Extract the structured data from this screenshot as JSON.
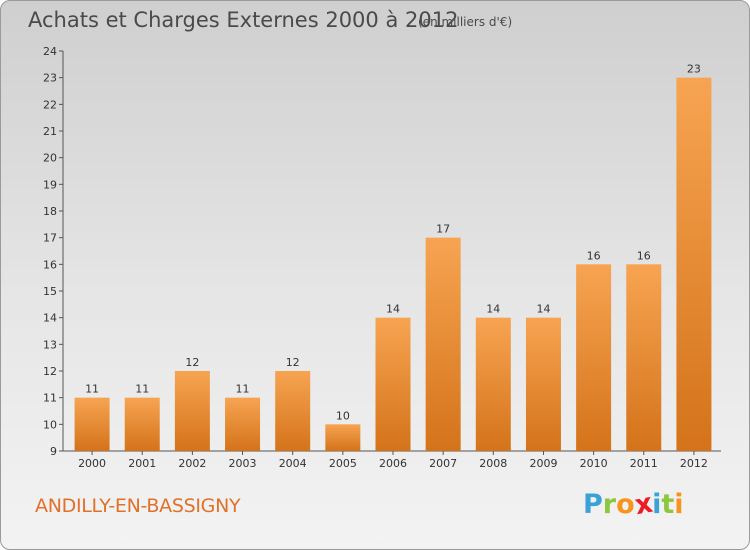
{
  "header": {
    "title": "Achats et Charges Externes 2000 à 2012",
    "subtitle": "(en milliers d'€)"
  },
  "footer": {
    "commune": "ANDILLY-EN-BASSIGNY",
    "logo_letters": [
      "P",
      "r",
      "o",
      "x",
      "i",
      "t",
      "i"
    ],
    "logo_colors": [
      "#3aa3d6",
      "#8dc63f",
      "#f7941d",
      "#ed1c24",
      "#3aa3d6",
      "#8dc63f",
      "#f7941d"
    ]
  },
  "chart_data": {
    "type": "bar",
    "title": "Achats et Charges Externes 2000 à 2012",
    "subtitle": "(en milliers d'€)",
    "categories": [
      "2000",
      "2001",
      "2002",
      "2003",
      "2004",
      "2005",
      "2006",
      "2007",
      "2008",
      "2009",
      "2010",
      "2011",
      "2012"
    ],
    "values": [
      11,
      11,
      12,
      11,
      12,
      10,
      14,
      17,
      14,
      14,
      16,
      16,
      23
    ],
    "data_labels": [
      "11",
      "11",
      "12",
      "11",
      "12",
      "10",
      "14",
      "17",
      "14",
      "14",
      "16",
      "16",
      "23"
    ],
    "xlabel": "",
    "ylabel": "",
    "ylim": [
      9,
      24
    ],
    "yticks": [
      9,
      10,
      11,
      12,
      13,
      14,
      15,
      16,
      17,
      18,
      19,
      20,
      21,
      22,
      23,
      24
    ],
    "bar_color_light": "#f7a452",
    "bar_color_dark": "#d4731a",
    "grid": false,
    "legend": "none"
  }
}
